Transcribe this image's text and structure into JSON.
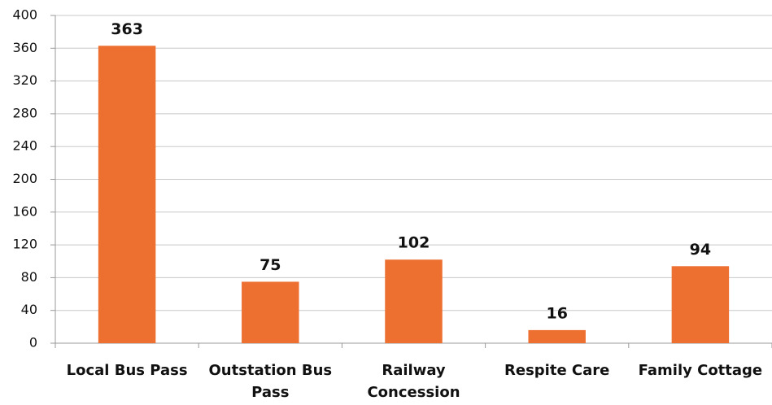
{
  "chart_data": {
    "type": "bar",
    "categories": [
      "Local Bus Pass",
      "Outstation Bus Pass",
      "Railway Concession",
      "Respite Care",
      "Family Cottage"
    ],
    "values": [
      363,
      75,
      102,
      16,
      94
    ],
    "color": "#ed7031",
    "ylim": [
      0,
      400
    ],
    "yticks": [
      0,
      40,
      80,
      120,
      160,
      200,
      240,
      280,
      320,
      360,
      400
    ],
    "grid": true
  }
}
